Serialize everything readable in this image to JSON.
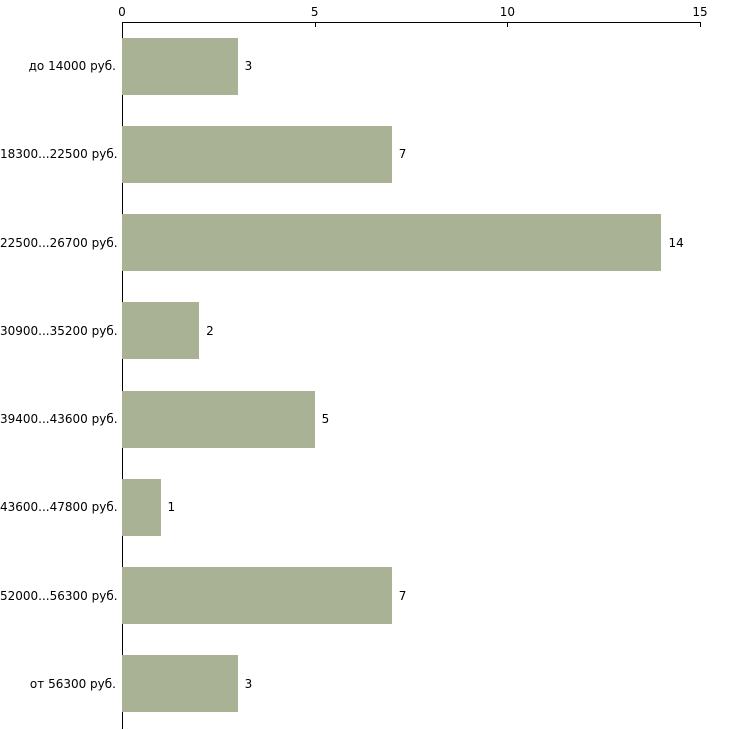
{
  "chart_data": {
    "type": "bar",
    "orientation": "horizontal",
    "title": "",
    "xlabel": "",
    "ylabel": "",
    "categories": [
      "до 14000 руб.",
      "18300...22500 руб.",
      "22500...26700 руб.",
      "30900...35200 руб.",
      "39400...43600 руб.",
      "43600...47800 руб.",
      "52000...56300 руб.",
      "от 56300 руб."
    ],
    "values": [
      3,
      7,
      14,
      2,
      5,
      1,
      7,
      3
    ],
    "value_labels_shown": true,
    "xlim": [
      0,
      15
    ],
    "x_ticks": [
      0,
      5,
      10,
      15
    ],
    "axis_position": "top",
    "grid": false,
    "legend": "none",
    "bar_color": "#a9b294",
    "axis_color": "#000000",
    "background_color": "#ffffff",
    "text_color": "#000000"
  }
}
